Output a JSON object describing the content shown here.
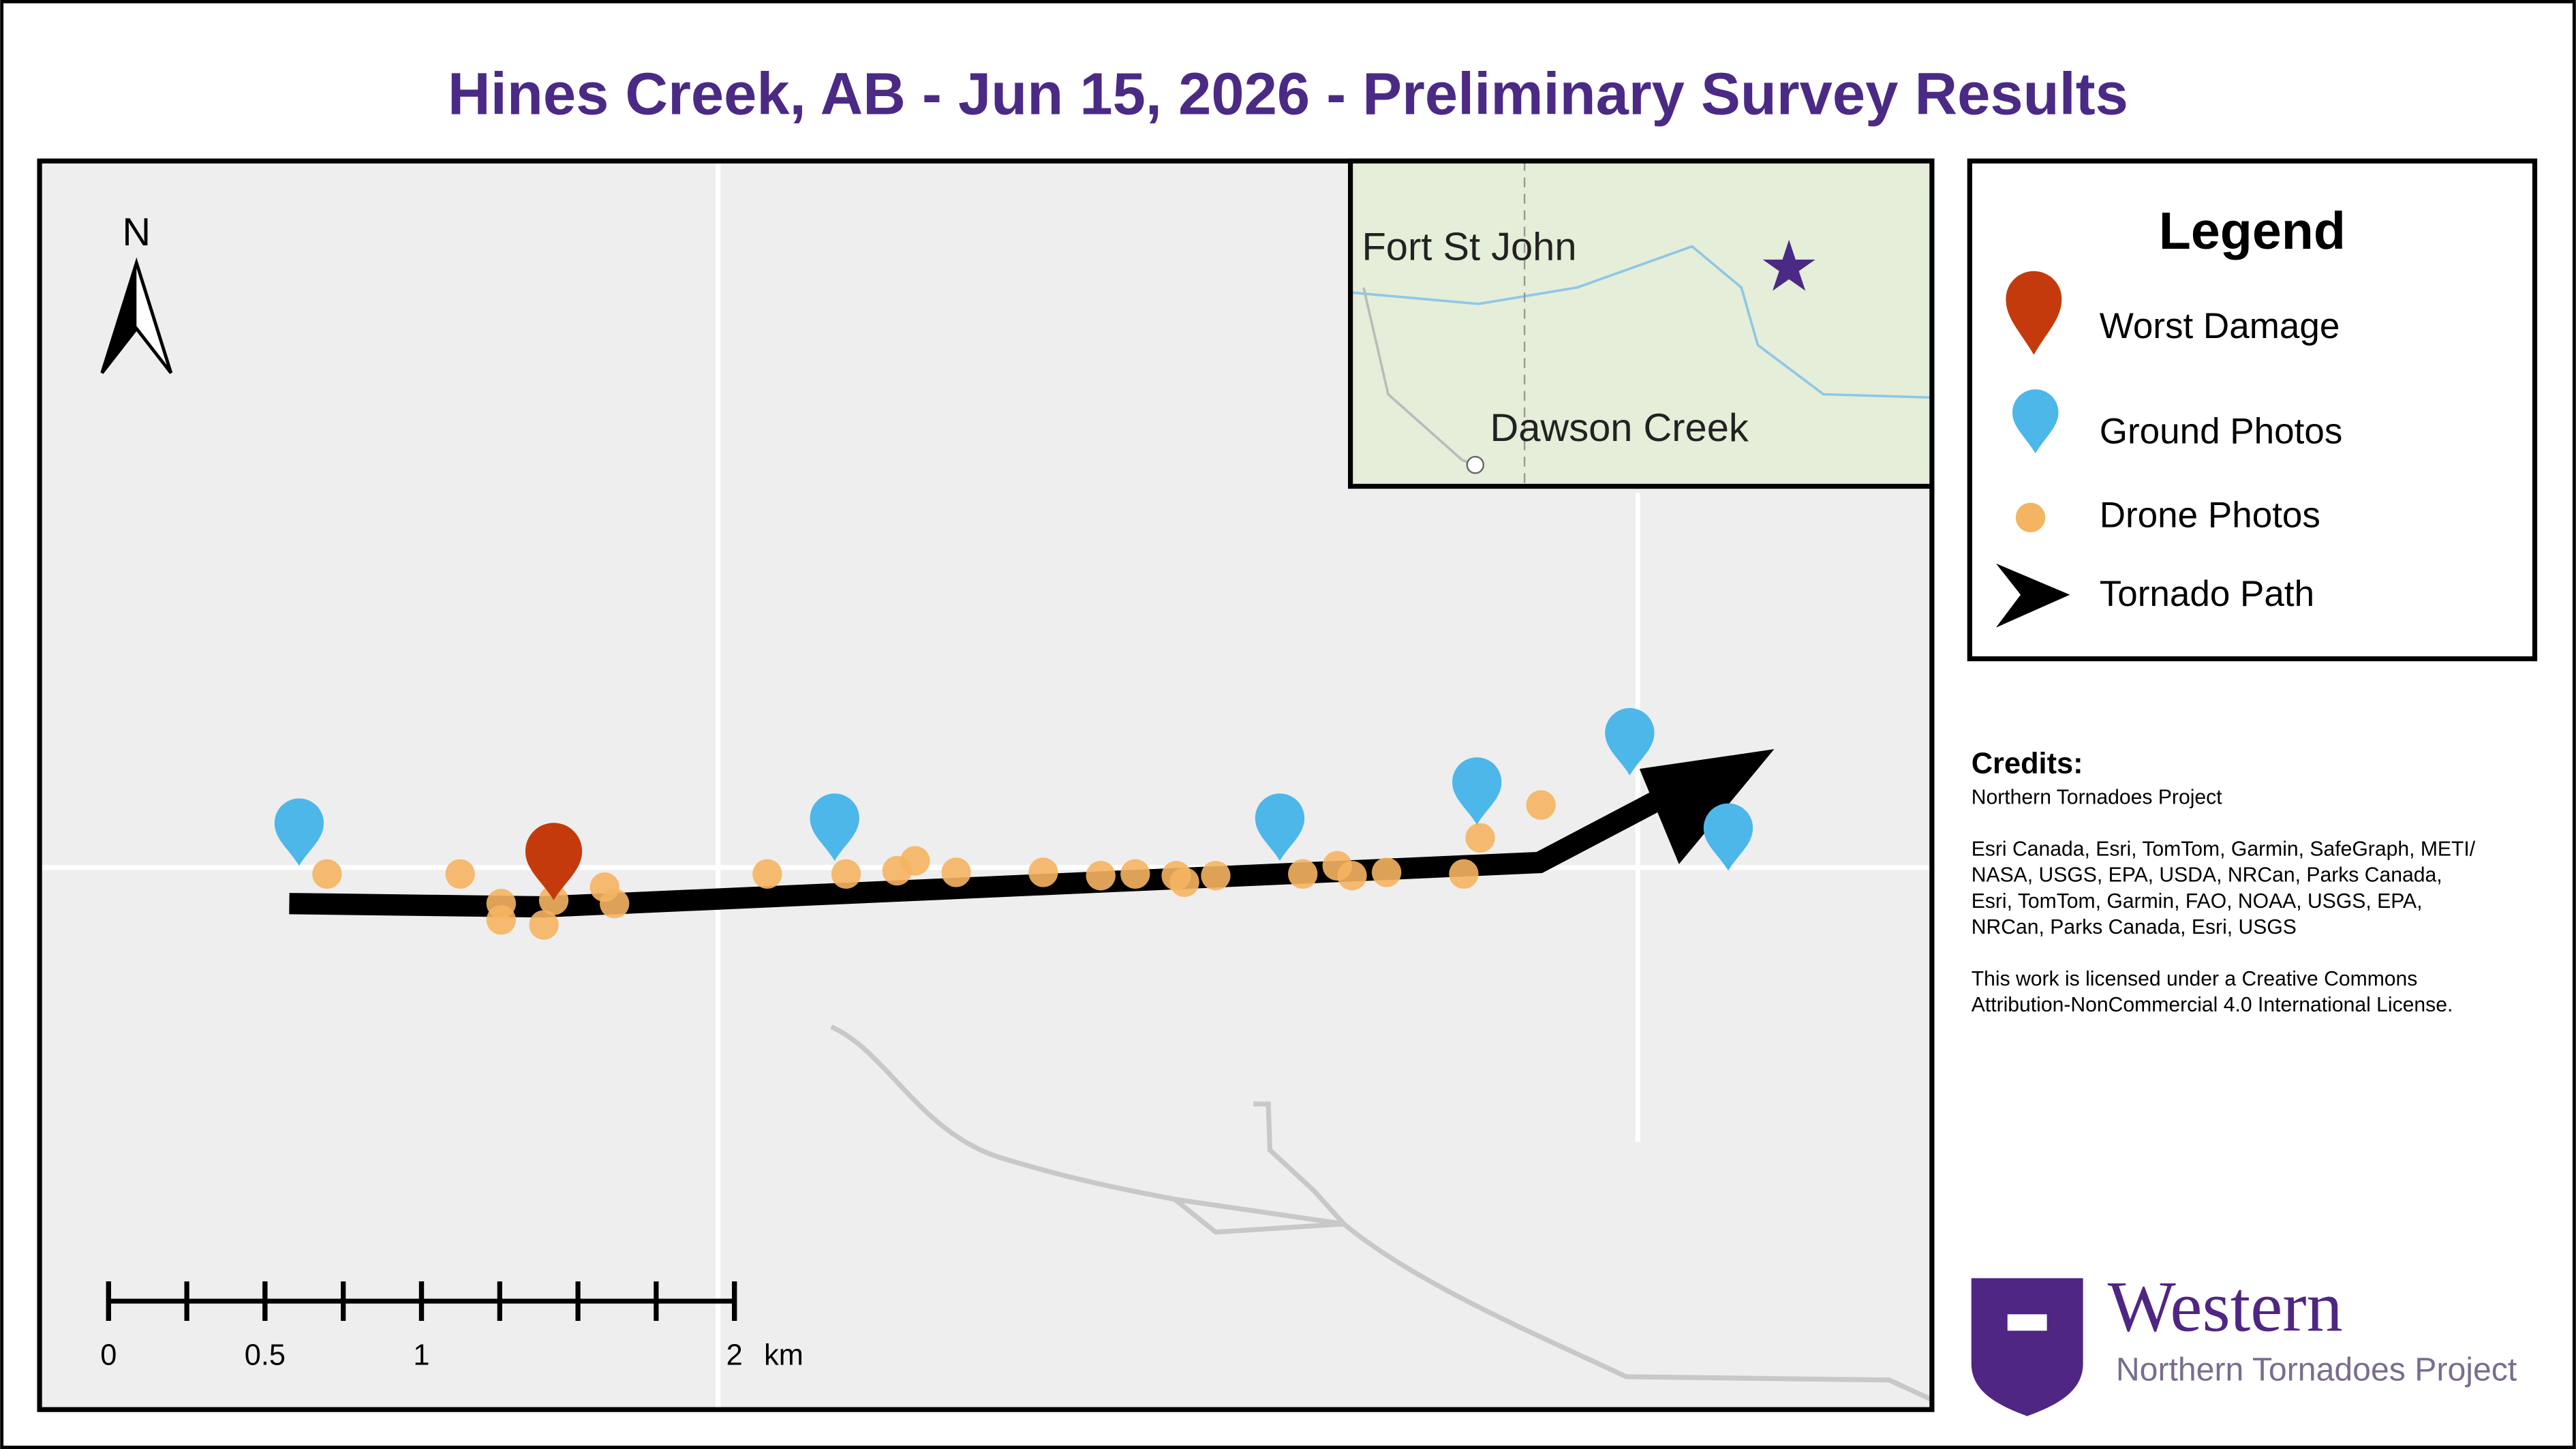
{
  "header": {
    "title": "Hines Creek, AB - Jun 15, 2026 - Preliminary Survey Results"
  },
  "map": {
    "north": "N",
    "scale_bar": {
      "ticks": [
        0,
        0.5,
        1,
        2
      ],
      "unit": "km"
    },
    "inset": {
      "labels": [
        "Fort St John",
        "Dawson Creek"
      ]
    }
  },
  "legend": {
    "title": "Legend",
    "items": [
      "Worst Damage",
      "Ground Photos",
      "Drone Photos",
      "Tornado Path"
    ]
  },
  "credits": {
    "heading": "Credits:",
    "paragraphs": [
      [
        "Northern Tornadoes Project"
      ],
      [
        "Esri Canada, Esri, TomTom, Garmin, SafeGraph, METI/",
        "NASA, USGS, EPA, USDA, NRCan, Parks Canada,",
        "Esri, TomTom, Garmin, FAO, NOAA, USGS, EPA,",
        "NRCan, Parks Canada, Esri, USGS"
      ],
      [
        "This work is licensed under a Creative Commons",
        "Attribution-NonCommercial 4.0 International License."
      ]
    ]
  },
  "logo": {
    "name": "Western",
    "subtitle": "Northern Tornadoes Project"
  }
}
